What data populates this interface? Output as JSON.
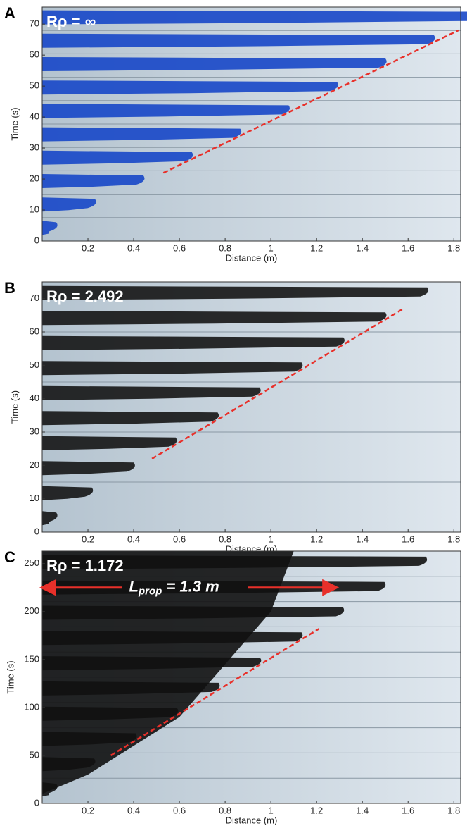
{
  "chart_data": [
    {
      "type": "line",
      "panel_label": "A",
      "annotation": "Rρ = ∞",
      "xlabel": "Distance (m)",
      "ylabel": "Time (s)",
      "xlim": [
        0,
        1.83
      ],
      "ylim": [
        0,
        75.5
      ],
      "xticks": [
        0.2,
        0.4,
        0.6,
        0.8,
        1,
        1.2,
        1.4,
        1.6,
        1.8
      ],
      "yticks": [
        0,
        10,
        20,
        30,
        40,
        50,
        60,
        70
      ],
      "plume_color": "#1747c8",
      "series": [
        {
          "color": "#e8302a",
          "x": [
            0.53,
            1.82
          ],
          "values": [
            22,
            68
          ]
        }
      ]
    },
    {
      "type": "line",
      "panel_label": "B",
      "annotation": "Rρ = 2.492",
      "xlabel": "Distance (m)",
      "ylabel": "Time (s)",
      "xlim": [
        0,
        1.83
      ],
      "ylim": [
        0,
        75
      ],
      "xticks": [
        0.2,
        0.4,
        0.6,
        0.8,
        1,
        1.2,
        1.4,
        1.6,
        1.8
      ],
      "yticks": [
        0,
        10,
        20,
        30,
        40,
        50,
        60,
        70
      ],
      "plume_color": "#151515",
      "series": [
        {
          "color": "#e8302a",
          "x": [
            0.48,
            1.58
          ],
          "values": [
            22,
            67
          ]
        }
      ]
    },
    {
      "type": "line",
      "panel_label": "C",
      "annotation": "Rρ = 1.172",
      "xlabel": "Distance (m)",
      "ylabel": "Time (s)",
      "xlim": [
        0,
        1.83
      ],
      "ylim": [
        0,
        263
      ],
      "xticks": [
        0.2,
        0.4,
        0.6,
        0.8,
        1,
        1.2,
        1.4,
        1.6,
        1.8
      ],
      "yticks": [
        0,
        50,
        100,
        150,
        200,
        250
      ],
      "plume_color": "#111111",
      "prop_label": {
        "main": "L",
        "sub": "prop",
        "rest": " = 1.3 m"
      },
      "series": [
        {
          "color": "#e8302a",
          "x": [
            0.3,
            1.21
          ],
          "values": [
            50,
            182
          ]
        }
      ]
    }
  ]
}
